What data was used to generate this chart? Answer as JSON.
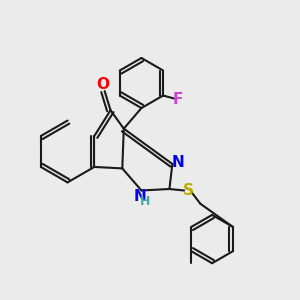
{
  "background_color": "#ebebeb",
  "bond_color": "#1a1a1a",
  "bond_width": 1.5,
  "figsize": [
    3.0,
    3.0
  ],
  "dpi": 100,
  "colors": {
    "O": "#ff0000",
    "N": "#0000ee",
    "NH": "#0000ee",
    "H": "#44aaaa",
    "S": "#bbaa00",
    "F": "#cc44cc"
  }
}
